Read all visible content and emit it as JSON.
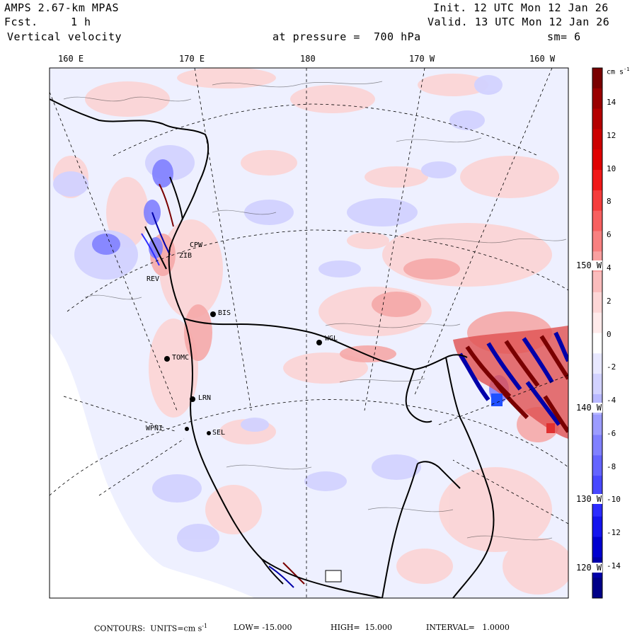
{
  "header": {
    "model": "AMPS 2.67-km MPAS",
    "fcst_label": "Fcst.",
    "fcst_value": "1 h",
    "field": "Vertical velocity",
    "init": "Init. 12 UTC Mon 12 Jan 26",
    "valid": "Valid. 13 UTC Mon 12 Jan 26",
    "pressure": "at pressure =  700 hPa",
    "smoothing": "sm= 6"
  },
  "longitude_labels": [
    "160 E",
    "170 E",
    "180",
    "170 W",
    "160 W"
  ],
  "latitude_labels": [
    "150 W",
    "140 W",
    "130 W",
    "120 W"
  ],
  "colorbar": {
    "unit": "cm s",
    "unit_exp": "-1",
    "ticks": [
      "14",
      "12",
      "10",
      "8",
      "6",
      "4",
      "2",
      "0",
      "-2",
      "-4",
      "-6",
      "-8",
      "-10",
      "-12",
      "-14"
    ],
    "colors": [
      "#7a0000",
      "#9a0000",
      "#b40000",
      "#cc0000",
      "#e00000",
      "#f01818",
      "#f53c3c",
      "#f76060",
      "#f88080",
      "#f9a0a0",
      "#fbbcbc",
      "#fdd6d6",
      "#ffeaea",
      "#ffffff",
      "#e8e8ff",
      "#d2d2ff",
      "#b8b8ff",
      "#9c9cff",
      "#8080ff",
      "#6464ff",
      "#4848ff",
      "#2c2cff",
      "#1414ee",
      "#0000d0",
      "#0000aa",
      "#000088"
    ]
  },
  "stations": [
    "BIS",
    "WGL",
    "CPW",
    "ZIB",
    "REV",
    "TOMC",
    "LRN",
    "WPNI",
    "SEL"
  ],
  "footer": {
    "contours": "CONTOURS:  UNITS=cm s",
    "unit_exp": "-1",
    "low": "LOW= -15.000",
    "high": "HIGH=  15.000",
    "interval": "INTERVAL=   1.0000"
  }
}
